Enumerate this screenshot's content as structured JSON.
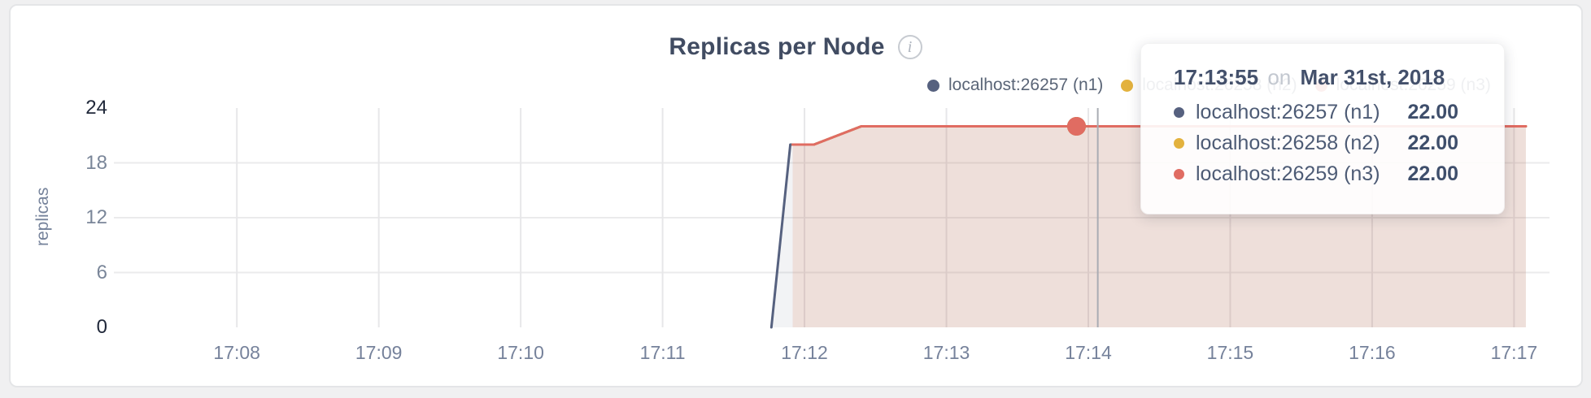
{
  "page": {
    "background": "#F0F0F1",
    "panel_border": "#E4E5E7"
  },
  "header": {
    "title": "Replicas per Node",
    "info_icon_glyph": "i"
  },
  "chart_data": {
    "type": "area",
    "title": "Replicas per Node",
    "ylabel": "replicas",
    "legend_position": "top-right",
    "grid": true,
    "axis": {
      "time_start": "17:07:08",
      "time_end": "17:17:15",
      "y_min": 0,
      "y_max": 24,
      "grid_y_values": [
        6,
        12,
        18
      ]
    },
    "y_ticks": [
      {
        "label": "0",
        "value": 0,
        "emph": true
      },
      {
        "label": "6",
        "value": 6,
        "emph": false
      },
      {
        "label": "12",
        "value": 12,
        "emph": false
      },
      {
        "label": "18",
        "value": 18,
        "emph": false
      },
      {
        "label": "24",
        "value": 24,
        "emph": true
      }
    ],
    "x_ticks": [
      "17:08",
      "17:09",
      "17:10",
      "17:11",
      "17:12",
      "17:13",
      "17:14",
      "17:15",
      "17:16",
      "17:17"
    ],
    "series": [
      {
        "name": "localhost:26257 (n1)",
        "color": "#56617F",
        "fill": "rgba(86,97,127,0.08)",
        "points": [
          [
            "17:11:46",
            0
          ],
          [
            "17:11:54",
            20
          ],
          [
            "17:12:04",
            20
          ],
          [
            "17:12:24",
            22
          ],
          [
            "17:17:05",
            22
          ]
        ]
      },
      {
        "name": "localhost:26258 (n2)",
        "color": "#E3B23E",
        "fill": "rgba(227,178,62,0.05)",
        "points": [
          [
            "17:11:55",
            20
          ],
          [
            "17:12:04",
            20
          ],
          [
            "17:12:24",
            22
          ],
          [
            "17:17:05",
            22
          ]
        ]
      },
      {
        "name": "localhost:26259 (n3)",
        "color": "#E06C62",
        "fill": "rgba(224,108,98,0.12)",
        "points": [
          [
            "17:11:55",
            20
          ],
          [
            "17:12:04",
            20
          ],
          [
            "17:12:24",
            22
          ],
          [
            "17:17:05",
            22
          ]
        ]
      }
    ],
    "hover": {
      "time": "17:13:55",
      "value": 22,
      "crosshair_time": "17:14:04",
      "dot_radius": 11.5
    },
    "style": {
      "grid_h_color": "#EBEBEC",
      "grid_v_color": "#E7E7E9",
      "crosshair_color": "#A9ACB3",
      "line_width": 3
    }
  },
  "legend": {
    "items": [
      {
        "label": "localhost:26257 (n1)",
        "color": "#56617F"
      },
      {
        "label": "localhost:26258 (n2)",
        "color": "#E3B23E"
      },
      {
        "label": "localhost:26259 (n3)",
        "color": "#E06C62"
      }
    ]
  },
  "tooltip": {
    "time": "17:13:55",
    "conjunction": "on",
    "date": "Mar 31st, 2018",
    "rows": [
      {
        "label": "localhost:26257 (n1)",
        "value": "22.00",
        "color": "#56617F"
      },
      {
        "label": "localhost:26258 (n2)",
        "value": "22.00",
        "color": "#E3B23E"
      },
      {
        "label": "localhost:26259 (n3)",
        "value": "22.00",
        "color": "#E06C62"
      }
    ]
  }
}
